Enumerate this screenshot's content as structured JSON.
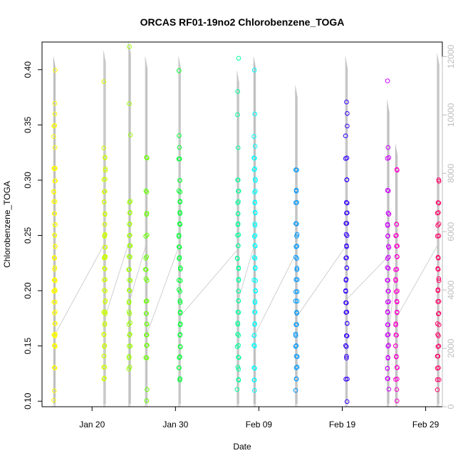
{
  "chart_data": {
    "type": "scatter",
    "title": "ORCAS RF01-19no2 Chlorobenzene_TOGA",
    "xlabel": "Date",
    "ylabel": "Chlorobenzene_TOGA",
    "x_axis": {
      "type": "date",
      "range": [
        "2016-01-14",
        "2016-03-02"
      ],
      "ticks": [
        {
          "date": "2016-01-20",
          "label": "Jan 20"
        },
        {
          "date": "2016-01-30",
          "label": "Jan 30"
        },
        {
          "date": "2016-02-09",
          "label": "Feb 09"
        },
        {
          "date": "2016-02-19",
          "label": "Feb 19"
        },
        {
          "date": "2016-02-29",
          "label": "Feb 29"
        }
      ]
    },
    "y_axis": {
      "range": [
        0.095,
        0.425
      ],
      "ticks": [
        0.1,
        0.15,
        0.2,
        0.25,
        0.3,
        0.35,
        0.4
      ],
      "tick_labels": [
        "0.10",
        "0.15",
        "0.20",
        "0.25",
        "0.30",
        "0.35",
        "0.40"
      ]
    },
    "y2_axis": {
      "series": "Altitude",
      "range": [
        0,
        12500
      ],
      "ticks": [
        0,
        2000,
        4000,
        6000,
        8000,
        10000,
        12000
      ],
      "tick_labels": [
        "0",
        "2000",
        "4000",
        "6000",
        "8000",
        "10000",
        "12000"
      ],
      "color": "#bdbdbd"
    },
    "grid": false,
    "legend": "none",
    "point_style": "open-circle",
    "altitude_track_color": "#bdbdbd",
    "flights": [
      {
        "id": "RF01",
        "date": "2016-01-15",
        "color": "#FFFF00",
        "alt_max": 12000,
        "values": [
          0.1,
          0.11,
          0.13,
          0.15,
          0.15,
          0.16,
          0.16,
          0.17,
          0.18,
          0.19,
          0.2,
          0.2,
          0.21,
          0.21,
          0.22,
          0.23,
          0.23,
          0.24,
          0.25,
          0.26,
          0.27,
          0.28,
          0.29,
          0.3,
          0.31,
          0.31,
          0.33,
          0.34,
          0.35,
          0.35,
          0.36,
          0.37,
          0.4
        ]
      },
      {
        "id": "RF02",
        "date": "2016-01-21",
        "color": "#CCFF00",
        "alt_max": 12200,
        "values": [
          0.12,
          0.13,
          0.14,
          0.15,
          0.16,
          0.17,
          0.18,
          0.18,
          0.19,
          0.2,
          0.21,
          0.22,
          0.23,
          0.23,
          0.24,
          0.25,
          0.25,
          0.26,
          0.27,
          0.28,
          0.29,
          0.3,
          0.31,
          0.32,
          0.33,
          0.39
        ]
      },
      {
        "id": "RF03",
        "date": "2016-01-24",
        "color": "#99FF00",
        "alt_max": 12500,
        "values": [
          0.13,
          0.14,
          0.15,
          0.16,
          0.17,
          0.18,
          0.19,
          0.2,
          0.21,
          0.22,
          0.23,
          0.24,
          0.25,
          0.26,
          0.27,
          0.28,
          0.34,
          0.37,
          0.42
        ]
      },
      {
        "id": "RF04",
        "date": "2016-01-26",
        "color": "#66FF00",
        "alt_max": 12000,
        "values": [
          0.1,
          0.11,
          0.14,
          0.15,
          0.16,
          0.17,
          0.18,
          0.19,
          0.21,
          0.22,
          0.23,
          0.25,
          0.27,
          0.29,
          0.32
        ]
      },
      {
        "id": "RF05",
        "date": "2016-01-30",
        "color": "#00FF33",
        "alt_max": 12000,
        "values": [
          0.12,
          0.13,
          0.14,
          0.15,
          0.16,
          0.17,
          0.18,
          0.19,
          0.2,
          0.21,
          0.22,
          0.23,
          0.24,
          0.25,
          0.26,
          0.27,
          0.28,
          0.29,
          0.3,
          0.32,
          0.33,
          0.34,
          0.4
        ]
      },
      {
        "id": "RF06",
        "date": "2016-02-06",
        "color": "#00FF99",
        "alt_max": 11500,
        "values": [
          0.11,
          0.12,
          0.13,
          0.14,
          0.15,
          0.16,
          0.17,
          0.18,
          0.19,
          0.2,
          0.21,
          0.22,
          0.23,
          0.24,
          0.25,
          0.26,
          0.27,
          0.28,
          0.29,
          0.3,
          0.33,
          0.36,
          0.38,
          0.41
        ]
      },
      {
        "id": "RF07",
        "date": "2016-02-08",
        "color": "#00FFFF",
        "alt_max": 12000,
        "values": [
          0.11,
          0.12,
          0.13,
          0.15,
          0.16,
          0.17,
          0.18,
          0.19,
          0.2,
          0.21,
          0.22,
          0.23,
          0.24,
          0.25,
          0.26,
          0.27,
          0.28,
          0.29,
          0.3,
          0.31,
          0.32,
          0.33,
          0.34,
          0.36,
          0.4
        ]
      },
      {
        "id": "RF08",
        "date": "2016-02-13",
        "color": "#0099FF",
        "alt_max": 11000,
        "values": [
          0.11,
          0.12,
          0.13,
          0.14,
          0.15,
          0.16,
          0.17,
          0.18,
          0.19,
          0.2,
          0.21,
          0.22,
          0.23,
          0.24,
          0.25,
          0.26,
          0.28,
          0.29,
          0.31
        ]
      },
      {
        "id": "RF09",
        "date": "2016-02-19",
        "color": "#3300FF",
        "alt_max": 12000,
        "values": [
          0.1,
          0.12,
          0.14,
          0.15,
          0.16,
          0.17,
          0.18,
          0.19,
          0.2,
          0.21,
          0.22,
          0.23,
          0.24,
          0.25,
          0.26,
          0.27,
          0.28,
          0.3,
          0.32,
          0.34,
          0.35,
          0.36,
          0.37
        ]
      },
      {
        "id": "RF10",
        "date": "2016-02-24",
        "color": "#CC00FF",
        "alt_max": 10500,
        "values": [
          0.11,
          0.12,
          0.13,
          0.14,
          0.15,
          0.16,
          0.17,
          0.18,
          0.19,
          0.2,
          0.21,
          0.22,
          0.23,
          0.24,
          0.25,
          0.26,
          0.27,
          0.29,
          0.32,
          0.33,
          0.39
        ]
      },
      {
        "id": "RF11",
        "date": "2016-02-25",
        "color": "#FF00CC",
        "alt_max": 9000,
        "values": [
          0.1,
          0.11,
          0.12,
          0.13,
          0.14,
          0.15,
          0.16,
          0.17,
          0.18,
          0.19,
          0.2,
          0.21,
          0.22,
          0.23,
          0.24,
          0.25,
          0.26,
          0.31
        ]
      },
      {
        "id": "RF12",
        "date": "2016-03-01",
        "color": "#FF0066",
        "alt_max": 12100,
        "values": [
          0.11,
          0.12,
          0.13,
          0.14,
          0.15,
          0.16,
          0.17,
          0.18,
          0.19,
          0.2,
          0.21,
          0.22,
          0.23,
          0.25,
          0.26,
          0.27,
          0.28,
          0.3
        ]
      }
    ]
  }
}
